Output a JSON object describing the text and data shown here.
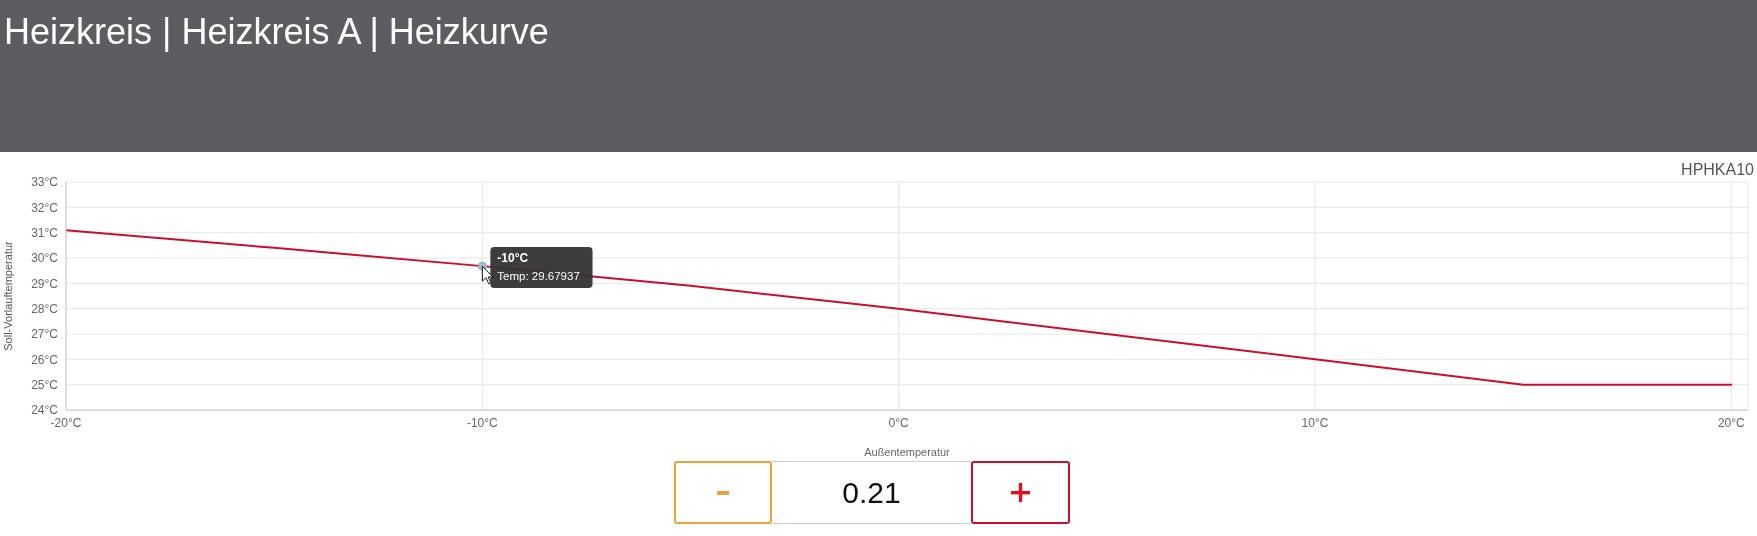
{
  "chart_data": {
    "type": "line",
    "title": "Heizkreis | Heizkreis A | Heizkurve",
    "xlabel": "Außentemperatur",
    "ylabel": "Soll-Vorlauftemperatur",
    "x": [
      -20,
      -15,
      -10,
      -5,
      0,
      5,
      10,
      15,
      20
    ],
    "values": [
      31.1,
      30.4,
      29.67937,
      28.9,
      28.0,
      27.0,
      26.0,
      25.0,
      25.0
    ],
    "color": "#c8102e",
    "xlim": [
      -20,
      20.4
    ],
    "xticks": [
      {
        "value": -20,
        "label": "-20°C"
      },
      {
        "value": -10,
        "label": "-10°C"
      },
      {
        "value": 0,
        "label": "0°C"
      },
      {
        "value": 10,
        "label": "10°C"
      },
      {
        "value": 20,
        "label": "20°C"
      }
    ],
    "ylim": [
      24,
      33
    ],
    "yticks": [
      {
        "value": 24,
        "label": "24°C"
      },
      {
        "value": 25,
        "label": "25°C"
      },
      {
        "value": 26,
        "label": "26°C"
      },
      {
        "value": 27,
        "label": "27°C"
      },
      {
        "value": 28,
        "label": "28°C"
      },
      {
        "value": 29,
        "label": "29°C"
      },
      {
        "value": 30,
        "label": "30°C"
      },
      {
        "value": 31,
        "label": "31°C"
      },
      {
        "value": 32,
        "label": "32°C"
      },
      {
        "value": 33,
        "label": "33°C"
      }
    ],
    "grid": true,
    "marker": "none",
    "line_style": "solid",
    "annotations": [
      "HPHKA10",
      {
        "text": "-10°C",
        "x": -10,
        "y": 29.67937
      },
      {
        "text": "Temp: 29.67937",
        "x": -10,
        "y": 29.67937
      },
      "0.21"
    ]
  }
}
